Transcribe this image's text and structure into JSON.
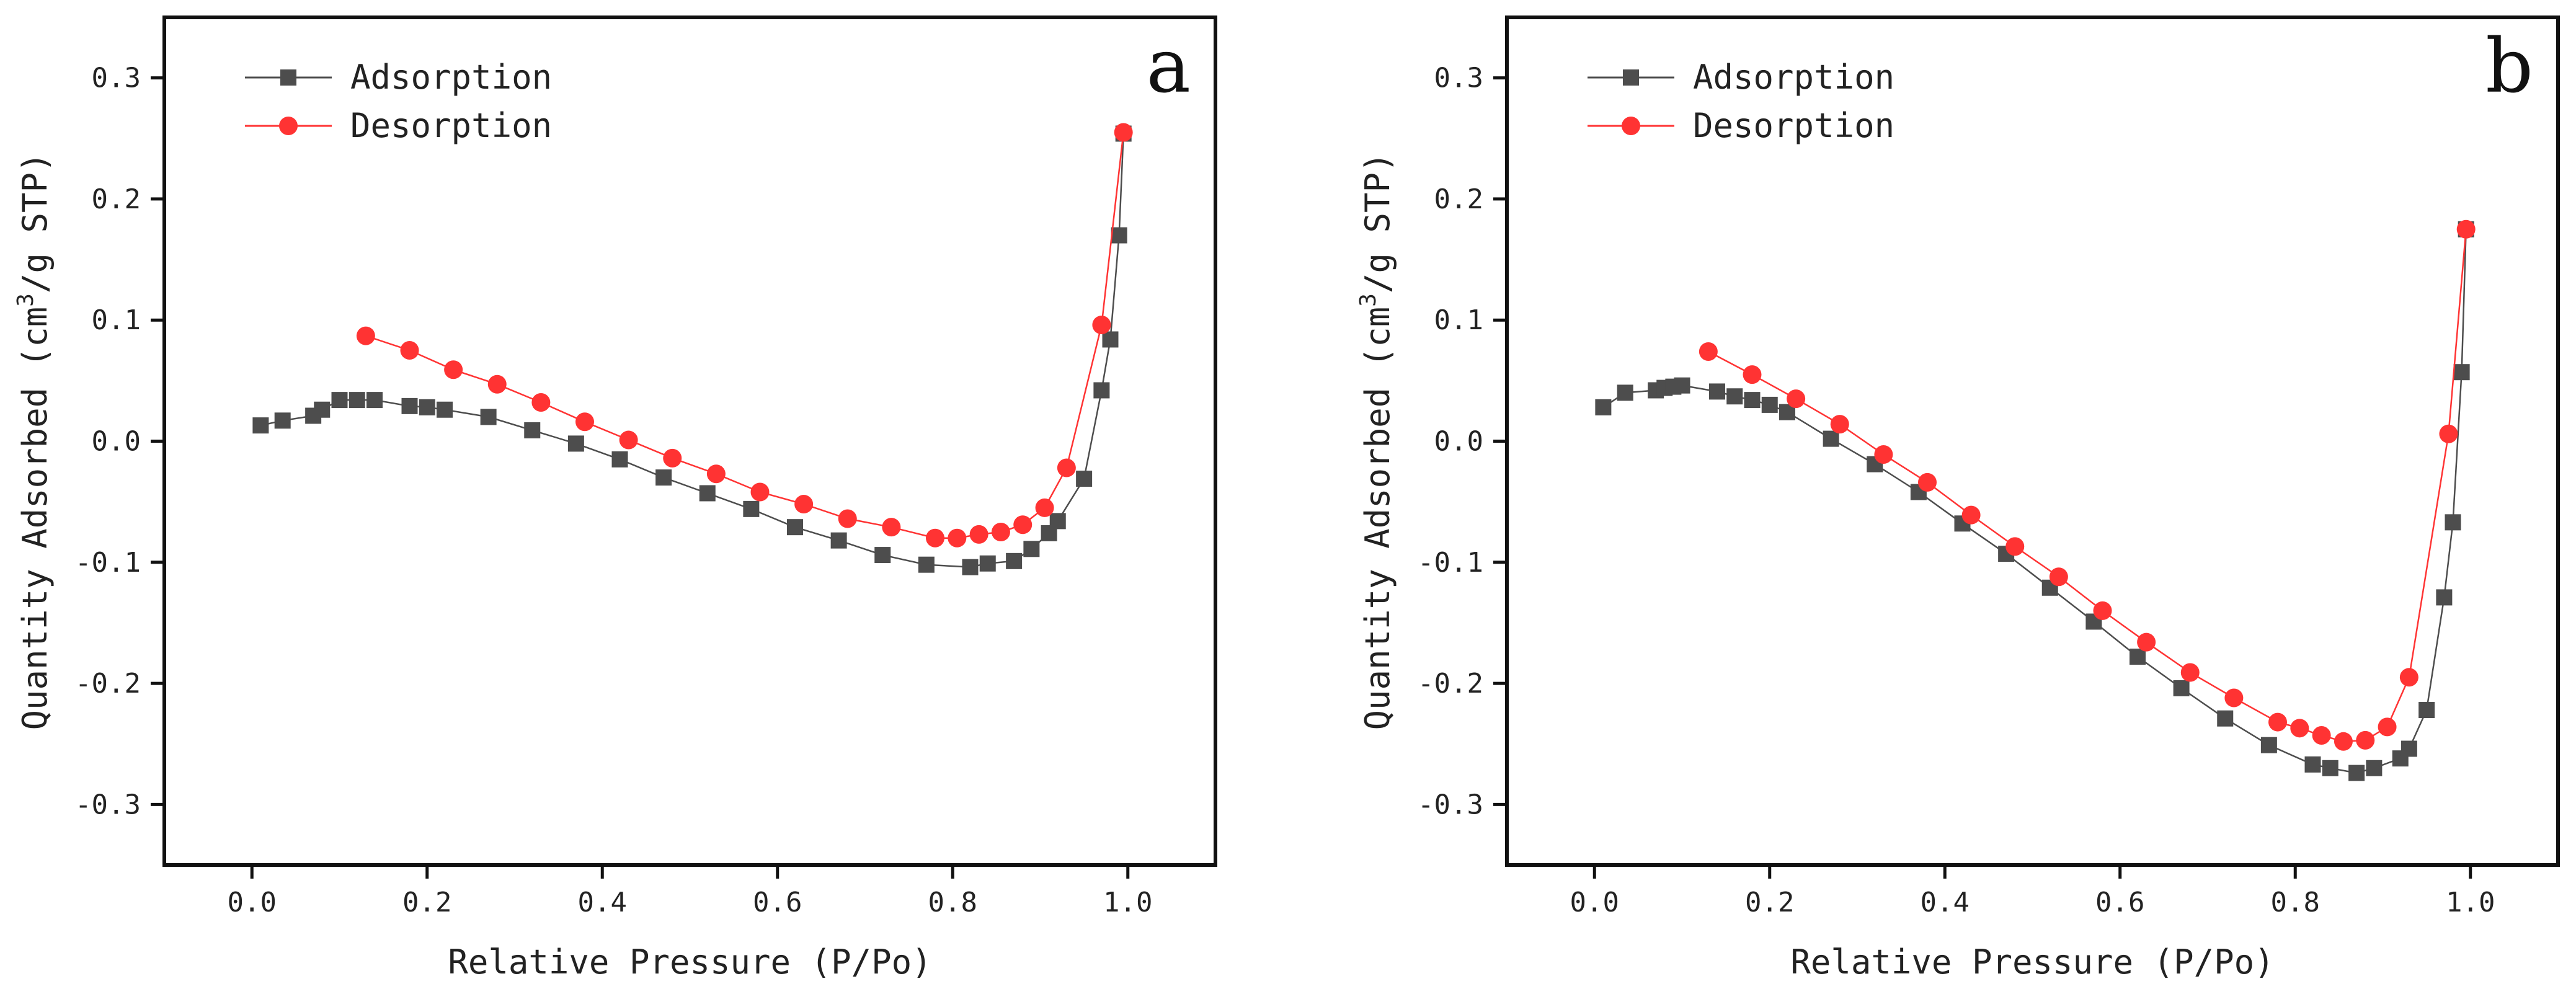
{
  "chart_data": [
    {
      "type": "line",
      "panel_label": "a",
      "xlabel": "Relative Pressure (P/Po)",
      "ylabel_main": "Quantity Adsorbed (cm",
      "ylabel_sup": "3",
      "ylabel_tail": "/g STP)",
      "xlim": [
        -0.1,
        1.1
      ],
      "ylim": [
        -0.35,
        0.35
      ],
      "xticks": [
        0.0,
        0.2,
        0.4,
        0.6,
        0.8,
        1.0
      ],
      "xtick_labels": [
        "0.0",
        "0.2",
        "0.4",
        "0.6",
        "0.8",
        "1.0"
      ],
      "yticks": [
        -0.3,
        -0.2,
        -0.1,
        0.0,
        0.1,
        0.2,
        0.3
      ],
      "ytick_labels": [
        "-0.3",
        "-0.2",
        "-0.1",
        "0.0",
        "0.1",
        "0.2",
        "0.3"
      ],
      "legend_position": "top-left",
      "series": [
        {
          "name": "Adsorption",
          "marker": "square",
          "color": "#4d4d4d",
          "x": [
            0.01,
            0.035,
            0.07,
            0.08,
            0.1,
            0.12,
            0.14,
            0.18,
            0.2,
            0.22,
            0.27,
            0.32,
            0.37,
            0.42,
            0.47,
            0.52,
            0.57,
            0.62,
            0.67,
            0.72,
            0.77,
            0.82,
            0.84,
            0.87,
            0.89,
            0.91,
            0.92,
            0.95,
            0.97,
            0.98,
            0.99,
            0.995
          ],
          "y": [
            0.013,
            0.017,
            0.021,
            0.026,
            0.034,
            0.034,
            0.034,
            0.029,
            0.028,
            0.026,
            0.02,
            0.009,
            -0.002,
            -0.015,
            -0.03,
            -0.043,
            -0.056,
            -0.071,
            -0.082,
            -0.094,
            -0.102,
            -0.104,
            -0.101,
            -0.099,
            -0.089,
            -0.076,
            -0.066,
            -0.031,
            0.042,
            0.084,
            0.17,
            0.254
          ]
        },
        {
          "name": "Desorption",
          "marker": "circle",
          "color": "#ff3333",
          "x": [
            0.13,
            0.18,
            0.23,
            0.28,
            0.33,
            0.38,
            0.43,
            0.48,
            0.53,
            0.58,
            0.63,
            0.68,
            0.73,
            0.78,
            0.805,
            0.83,
            0.855,
            0.88,
            0.905,
            0.93,
            0.97,
            0.995
          ],
          "y": [
            0.087,
            0.075,
            0.059,
            0.047,
            0.032,
            0.016,
            0.001,
            -0.014,
            -0.027,
            -0.042,
            -0.052,
            -0.064,
            -0.071,
            -0.08,
            -0.08,
            -0.077,
            -0.075,
            -0.069,
            -0.055,
            -0.022,
            0.096,
            0.255
          ]
        }
      ]
    },
    {
      "type": "line",
      "panel_label": "b",
      "xlabel": "Relative Pressure (P/Po)",
      "ylabel_main": "Quantity Adsorbed (cm",
      "ylabel_sup": "3",
      "ylabel_tail": "/g STP)",
      "xlim": [
        -0.1,
        1.1
      ],
      "ylim": [
        -0.35,
        0.35
      ],
      "xticks": [
        0.0,
        0.2,
        0.4,
        0.6,
        0.8,
        1.0
      ],
      "xtick_labels": [
        "0.0",
        "0.2",
        "0.4",
        "0.6",
        "0.8",
        "1.0"
      ],
      "yticks": [
        -0.3,
        -0.2,
        -0.1,
        0.0,
        0.1,
        0.2,
        0.3
      ],
      "ytick_labels": [
        "-0.3",
        "-0.2",
        "-0.1",
        "0.0",
        "0.1",
        "0.2",
        "0.3"
      ],
      "legend_position": "top-left",
      "series": [
        {
          "name": "Adsorption",
          "marker": "square",
          "color": "#4d4d4d",
          "x": [
            0.01,
            0.035,
            0.07,
            0.08,
            0.09,
            0.1,
            0.14,
            0.16,
            0.18,
            0.2,
            0.22,
            0.27,
            0.32,
            0.37,
            0.42,
            0.47,
            0.52,
            0.57,
            0.62,
            0.67,
            0.72,
            0.77,
            0.82,
            0.84,
            0.87,
            0.89,
            0.92,
            0.93,
            0.95,
            0.97,
            0.98,
            0.99,
            0.995
          ],
          "y": [
            0.028,
            0.04,
            0.042,
            0.044,
            0.045,
            0.046,
            0.041,
            0.037,
            0.034,
            0.03,
            0.024,
            0.002,
            -0.019,
            -0.042,
            -0.068,
            -0.093,
            -0.121,
            -0.149,
            -0.178,
            -0.204,
            -0.229,
            -0.251,
            -0.267,
            -0.27,
            -0.274,
            -0.27,
            -0.262,
            -0.254,
            -0.222,
            -0.129,
            -0.067,
            0.057,
            0.175
          ]
        },
        {
          "name": "Desorption",
          "marker": "circle",
          "color": "#ff3333",
          "x": [
            0.13,
            0.18,
            0.23,
            0.28,
            0.33,
            0.38,
            0.43,
            0.48,
            0.53,
            0.58,
            0.63,
            0.68,
            0.73,
            0.78,
            0.805,
            0.83,
            0.855,
            0.88,
            0.905,
            0.93,
            0.975,
            0.995
          ],
          "y": [
            0.074,
            0.055,
            0.035,
            0.014,
            -0.011,
            -0.034,
            -0.061,
            -0.087,
            -0.112,
            -0.14,
            -0.166,
            -0.191,
            -0.212,
            -0.232,
            -0.237,
            -0.243,
            -0.248,
            -0.247,
            -0.236,
            -0.195,
            0.006,
            0.175
          ]
        }
      ]
    }
  ]
}
